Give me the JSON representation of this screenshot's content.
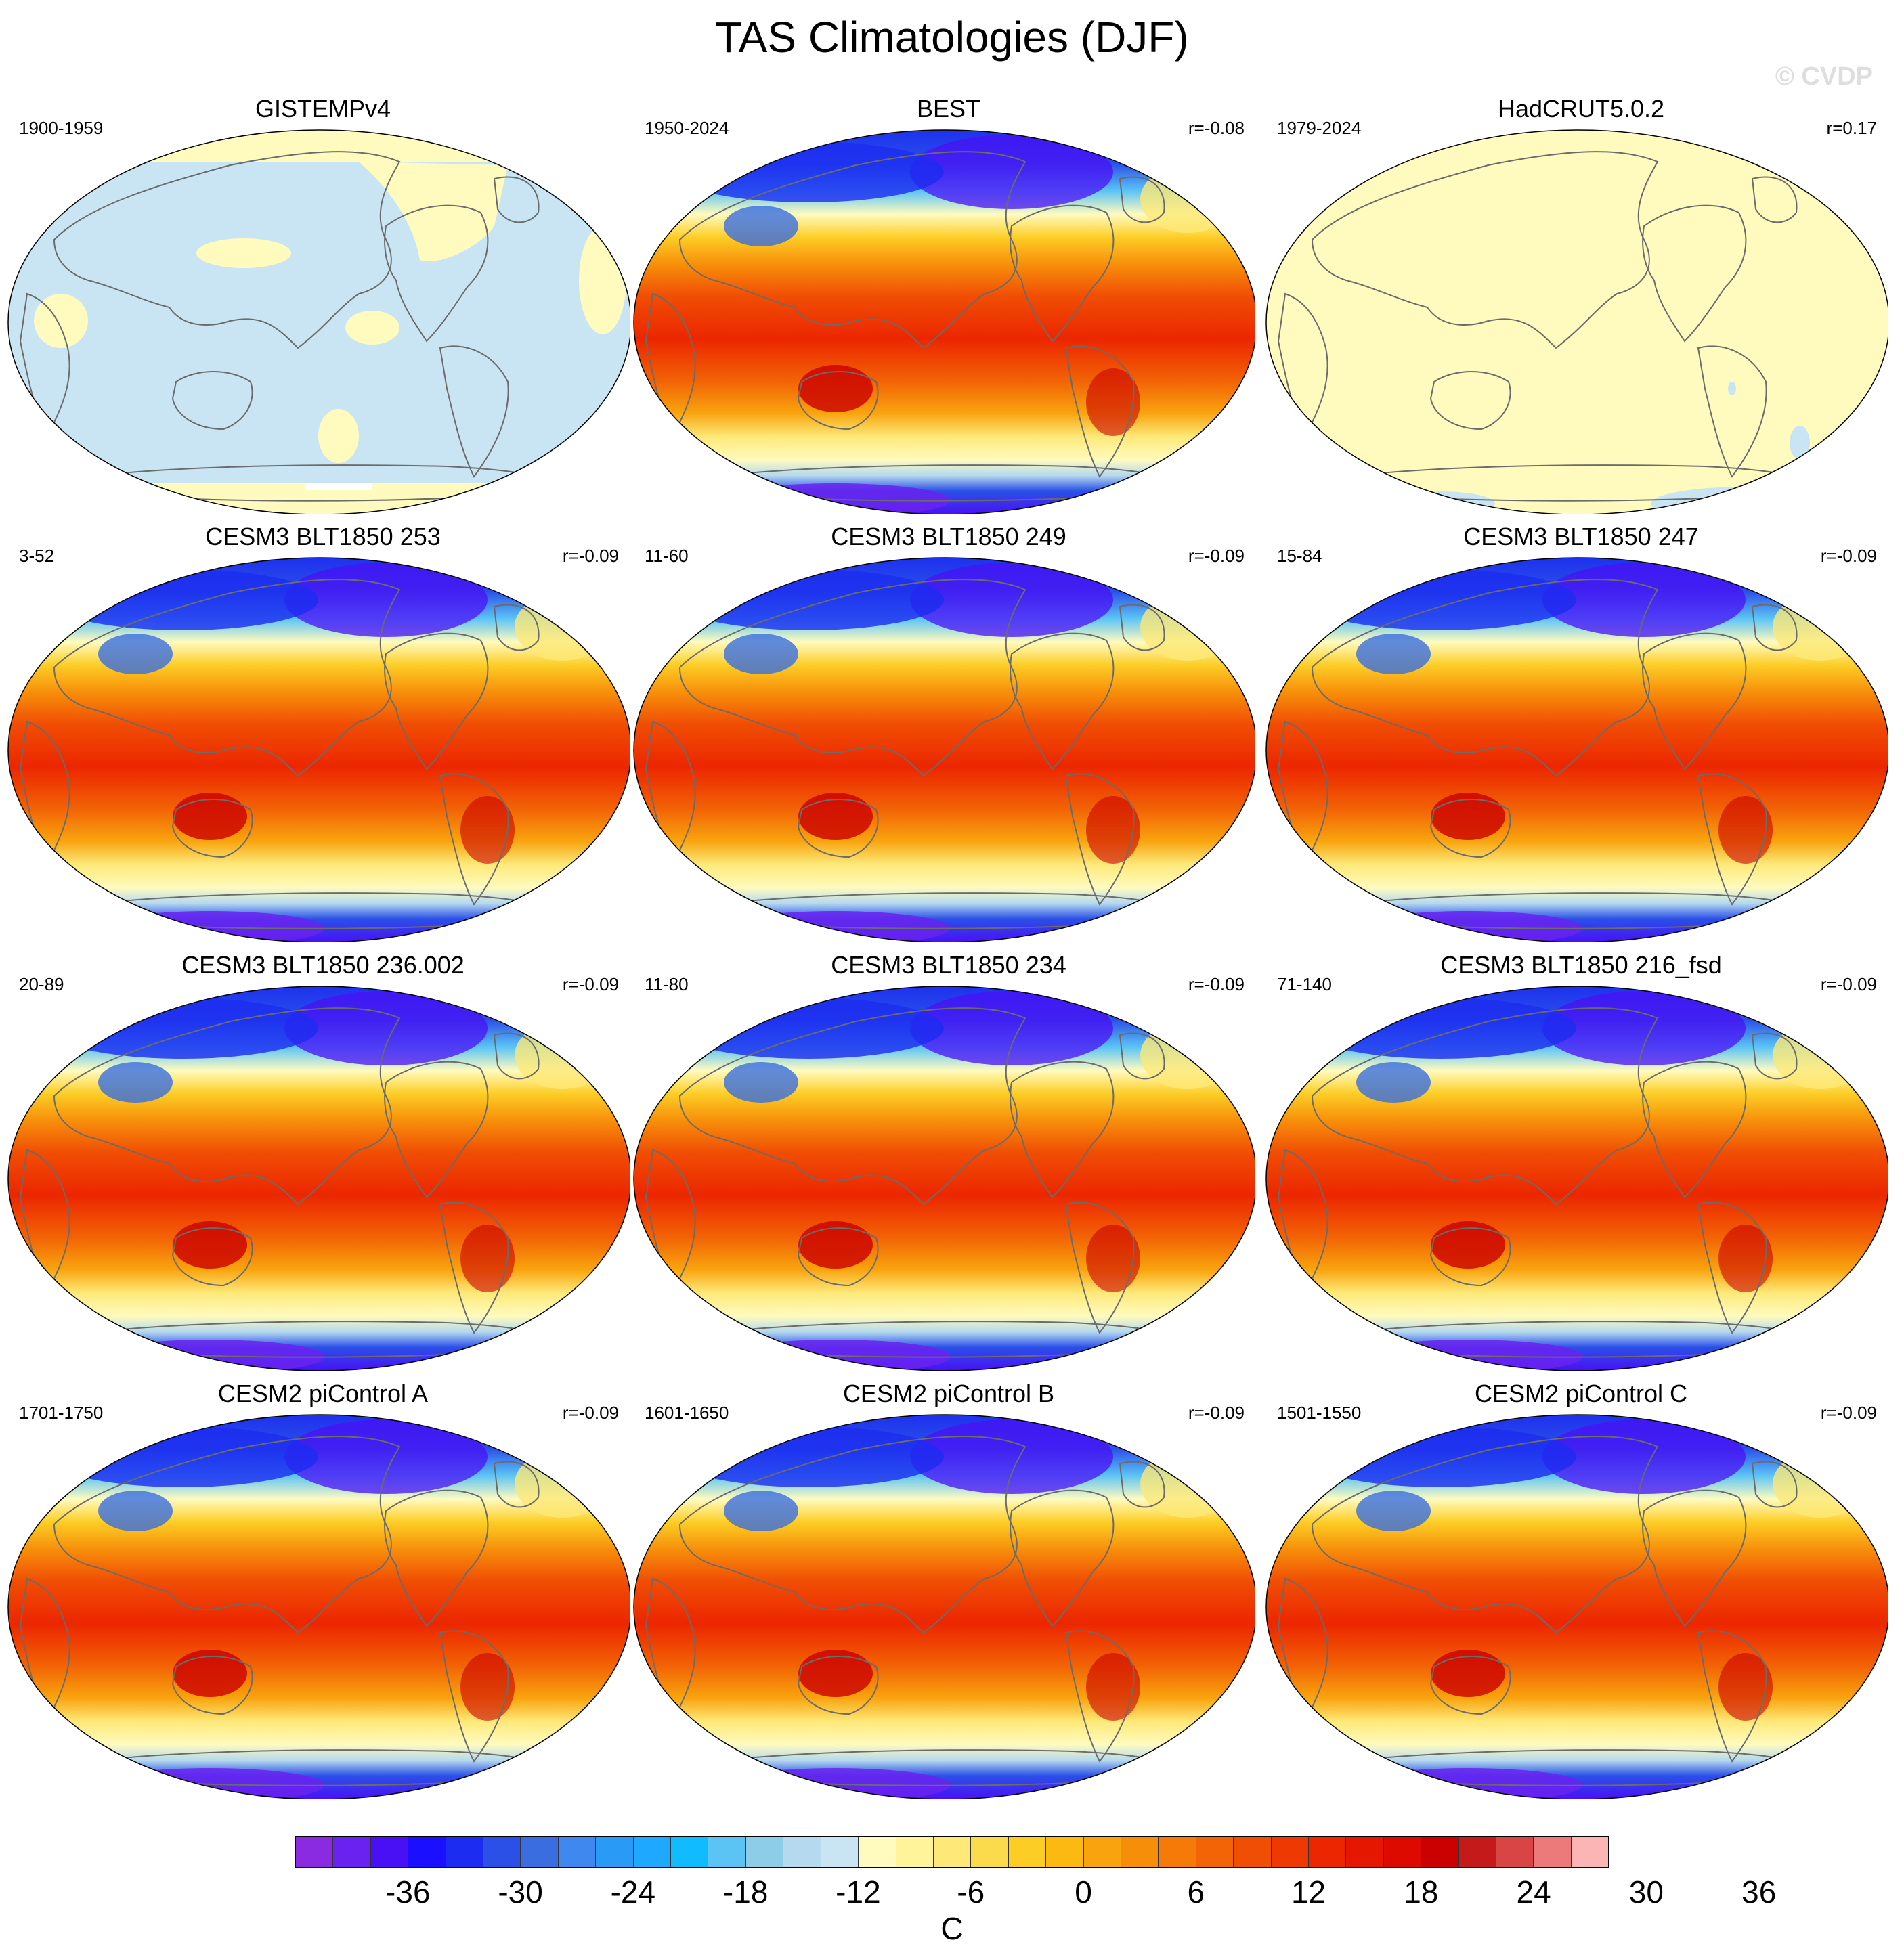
{
  "title": "TAS Climatologies (DJF)",
  "watermark": "© CVDP",
  "panels": [
    {
      "name": "GISTEMPv4",
      "period": "1900-1959",
      "r": "",
      "style": "gistemp"
    },
    {
      "name": "BEST",
      "period": "1950-2024",
      "r": "r=-0.08",
      "style": "full"
    },
    {
      "name": "HadCRUT5.0.2",
      "period": "1979-2024",
      "r": "r=0.17",
      "style": "hadcrut"
    },
    {
      "name": "CESM3 BLT1850 253",
      "period": "3-52",
      "r": "r=-0.09",
      "style": "full"
    },
    {
      "name": "CESM3 BLT1850 249",
      "period": "11-60",
      "r": "r=-0.09",
      "style": "full"
    },
    {
      "name": "CESM3 BLT1850 247",
      "period": "15-84",
      "r": "r=-0.09",
      "style": "full"
    },
    {
      "name": "CESM3 BLT1850 236.002",
      "period": "20-89",
      "r": "r=-0.09",
      "style": "full"
    },
    {
      "name": "CESM3 BLT1850 234",
      "period": "11-80",
      "r": "r=-0.09",
      "style": "full"
    },
    {
      "name": "CESM3 BLT1850 216_fsd",
      "period": "71-140",
      "r": "r=-0.09",
      "style": "full"
    },
    {
      "name": "CESM2 piControl A",
      "period": "1701-1750",
      "r": "r=-0.09",
      "style": "full"
    },
    {
      "name": "CESM2 piControl B",
      "period": "1601-1650",
      "r": "r=-0.09",
      "style": "full"
    },
    {
      "name": "CESM2 piControl C",
      "period": "1501-1550",
      "r": "r=-0.09",
      "style": "full"
    }
  ],
  "colorbar": {
    "unit": "C",
    "tick_labels": [
      "-36",
      "-30",
      "-24",
      "-18",
      "-12",
      "-6",
      "0",
      "6",
      "12",
      "18",
      "24",
      "30",
      "36"
    ],
    "colors": [
      "#8a2be2",
      "#6a22f0",
      "#4a10f5",
      "#1a10ff",
      "#1c2cf0",
      "#2a50e8",
      "#3a6ee0",
      "#3f88f0",
      "#2a9af7",
      "#1fa8ff",
      "#10bcff",
      "#5cc4f5",
      "#8ecde8",
      "#b5d9ef",
      "#c9e5f3",
      "#fffbbf",
      "#fff49a",
      "#fde878",
      "#fbdb4c",
      "#fccd25",
      "#fbb911",
      "#f9a40e",
      "#f78e0a",
      "#f57a07",
      "#f26405",
      "#f04e04",
      "#ee3a02",
      "#ec2600",
      "#e61700",
      "#dd0a00",
      "#cb0000",
      "#c41a1a",
      "#d94545",
      "#ec7a7a",
      "#fbb5b5"
    ]
  }
}
